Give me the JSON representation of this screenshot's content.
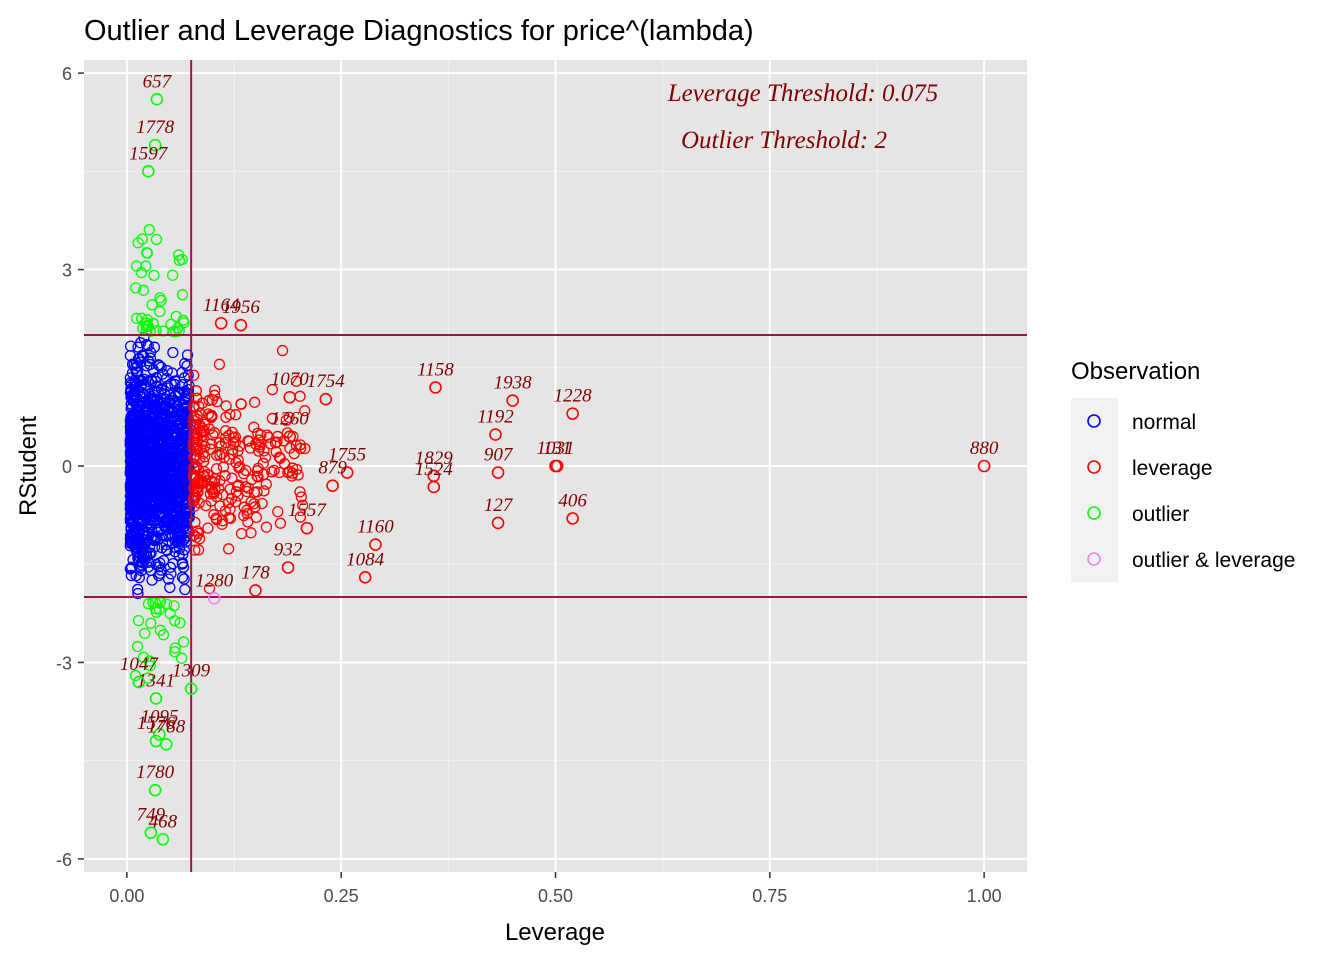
{
  "chart_data": {
    "type": "scatter",
    "title": "Outlier and Leverage Diagnostics for price^(lambda)",
    "xlabel": "Leverage",
    "ylabel": "RStudent",
    "xlim": [
      -0.05,
      1.05
    ],
    "ylim": [
      -6.2,
      6.2
    ],
    "x_ticks": [
      0.0,
      0.25,
      0.5,
      0.75,
      1.0
    ],
    "x_tick_labels": [
      "0.00",
      "0.25",
      "0.50",
      "0.75",
      "1.00"
    ],
    "y_ticks": [
      -6,
      -3,
      0,
      3,
      6
    ],
    "y_tick_labels": [
      "-6",
      "-3",
      "0",
      "3",
      "6"
    ],
    "grid": true,
    "annotations": [
      "Leverage Threshold: 0.075",
      "Outlier Threshold: 2"
    ],
    "leverage_threshold": 0.075,
    "outlier_threshold": 2,
    "threshold_color": "#a0134a",
    "label_color": "#800000",
    "panel_background": "#e5e5e5",
    "legend": {
      "title": "Observation",
      "placement": "right",
      "entries": [
        {
          "name": "normal",
          "color": "#0000ff"
        },
        {
          "name": "leverage",
          "color": "#ff0000"
        },
        {
          "name": "outlier",
          "color": "#00ff00"
        },
        {
          "name": "outlier & leverage",
          "color": "#ee82ee"
        }
      ]
    },
    "series": [
      {
        "name": "leverage",
        "color": "#ff0000",
        "points": [
          {
            "x": 1.0,
            "y": 0.0,
            "label": "880"
          },
          {
            "x": 0.36,
            "y": 1.2,
            "label": "1158"
          },
          {
            "x": 0.45,
            "y": 1.0,
            "label": "1938"
          },
          {
            "x": 0.52,
            "y": 0.8,
            "label": "1228"
          },
          {
            "x": 0.43,
            "y": 0.48,
            "label": "1192"
          },
          {
            "x": 0.5,
            "y": 0.0,
            "label": "1031"
          },
          {
            "x": 0.502,
            "y": 0.0,
            "label": "131"
          },
          {
            "x": 0.433,
            "y": -0.1,
            "label": "907"
          },
          {
            "x": 0.358,
            "y": -0.15,
            "label": "1829"
          },
          {
            "x": 0.358,
            "y": -0.32,
            "label": "1524"
          },
          {
            "x": 0.433,
            "y": -0.87,
            "label": "127"
          },
          {
            "x": 0.52,
            "y": -0.8,
            "label": "406"
          },
          {
            "x": 0.232,
            "y": 1.02,
            "label": "1754"
          },
          {
            "x": 0.257,
            "y": -0.1,
            "label": "1755"
          },
          {
            "x": 0.24,
            "y": -0.3,
            "label": "879"
          },
          {
            "x": 0.29,
            "y": -1.2,
            "label": "1160"
          },
          {
            "x": 0.278,
            "y": -1.7,
            "label": "1084"
          },
          {
            "x": 0.15,
            "y": -1.9,
            "label": "178"
          },
          {
            "x": 0.188,
            "y": -1.55,
            "label": "932"
          },
          {
            "x": 0.19,
            "y": 1.05,
            "label": "1070"
          },
          {
            "x": 0.19,
            "y": 0.45,
            "label": "1260"
          },
          {
            "x": 0.21,
            "y": -0.95,
            "label": "1557"
          },
          {
            "x": 0.133,
            "y": 2.15,
            "label": "1956"
          },
          {
            "x": 0.11,
            "y": 2.18,
            "label": "1164"
          }
        ]
      },
      {
        "name": "outlier",
        "color": "#00ff00",
        "points": [
          {
            "x": 0.035,
            "y": 5.6,
            "label": "657"
          },
          {
            "x": 0.033,
            "y": 4.9,
            "label": "1778"
          },
          {
            "x": 0.025,
            "y": 4.5,
            "label": "1597"
          },
          {
            "x": 0.033,
            "y": -4.95,
            "label": "1780"
          },
          {
            "x": 0.028,
            "y": -5.6,
            "label": "749"
          },
          {
            "x": 0.042,
            "y": -5.7,
            "label": "468"
          },
          {
            "x": 0.038,
            "y": -4.1,
            "label": "1095"
          },
          {
            "x": 0.034,
            "y": -4.2,
            "label": "1576"
          },
          {
            "x": 0.046,
            "y": -4.25,
            "label": "1788"
          },
          {
            "x": 0.075,
            "y": -3.4,
            "label": "1309"
          },
          {
            "x": 0.034,
            "y": -3.55,
            "label": "1341"
          },
          {
            "x": 0.014,
            "y": -3.3,
            "label": "1047"
          }
        ]
      },
      {
        "name": "outlier & leverage",
        "color": "#ee82ee",
        "points": [
          {
            "x": 0.102,
            "y": -2.02,
            "label": "1280"
          }
        ]
      }
    ]
  }
}
